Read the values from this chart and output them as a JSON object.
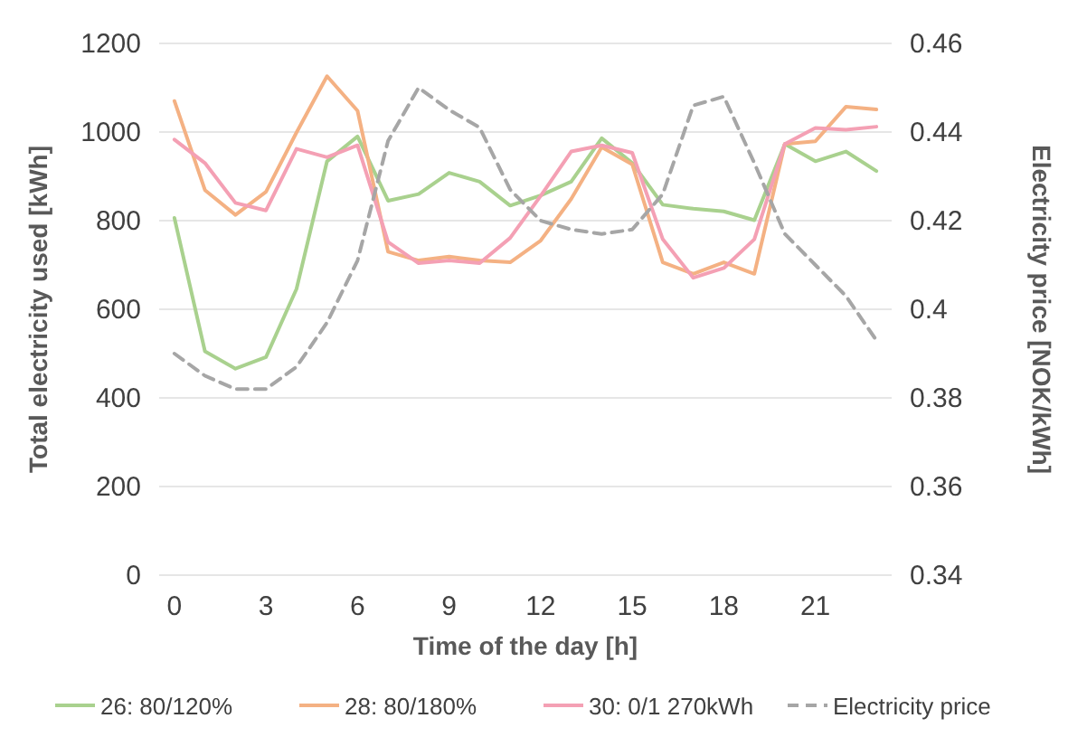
{
  "chart_data": {
    "type": "line",
    "xlabel": "Time of the day [h]",
    "ylabel": "Total electricity used [kWh]",
    "y2label": "Electricity price [NOK/kWh]",
    "x": [
      0,
      1,
      2,
      3,
      4,
      5,
      6,
      7,
      8,
      9,
      10,
      11,
      12,
      13,
      14,
      15,
      16,
      17,
      18,
      19,
      20,
      21,
      22,
      23
    ],
    "xlim": [
      -0.5,
      23.5
    ],
    "xticks": [
      0,
      3,
      6,
      9,
      12,
      15,
      18,
      21
    ],
    "ylim": [
      0,
      1200
    ],
    "yticks": [
      0,
      200,
      400,
      600,
      800,
      1000,
      1200
    ],
    "y2lim": [
      0.34,
      0.46
    ],
    "y2ticks": [
      0.34,
      0.36,
      0.38,
      {
        "value": 0.4,
        "label": "0.4"
      },
      0.42,
      0.44,
      0.46
    ],
    "grid": "y",
    "legend": "bottom",
    "marker": "none",
    "series": [
      {
        "name": "26: 80/120%",
        "color": "#a9d18e",
        "values": [
          806,
          505,
          466,
          492,
          646,
          934,
          990,
          845,
          860,
          908,
          888,
          834,
          857,
          888,
          986,
          930,
          836,
          827,
          821,
          801,
          973,
          934,
          956,
          912
        ]
      },
      {
        "name": "28: 80/180%",
        "color": "#f4b183",
        "values": [
          1070,
          869,
          813,
          865,
          999,
          1126,
          1048,
          730,
          710,
          719,
          710,
          706,
          755,
          849,
          966,
          927,
          706,
          680,
          706,
          680,
          973,
          979,
          1057,
          1051
        ]
      },
      {
        "name": "30: 0/1 270kWh",
        "color": "#f4a0b4",
        "values": [
          983,
          930,
          840,
          823,
          962,
          943,
          970,
          752,
          704,
          710,
          704,
          761,
          856,
          956,
          970,
          953,
          758,
          671,
          693,
          758,
          973,
          1009,
          1005,
          1012
        ]
      },
      {
        "name": "Electricity price",
        "color": "#a6a6a6",
        "axis": "y2",
        "line_style": "dashed",
        "values": [
          0.39,
          0.385,
          0.382,
          0.382,
          0.387,
          0.397,
          0.411,
          0.438,
          0.45,
          0.445,
          0.441,
          0.427,
          0.42,
          0.418,
          0.417,
          0.418,
          0.426,
          0.446,
          0.448,
          0.433,
          0.417,
          0.41,
          0.403,
          0.393
        ]
      }
    ]
  }
}
